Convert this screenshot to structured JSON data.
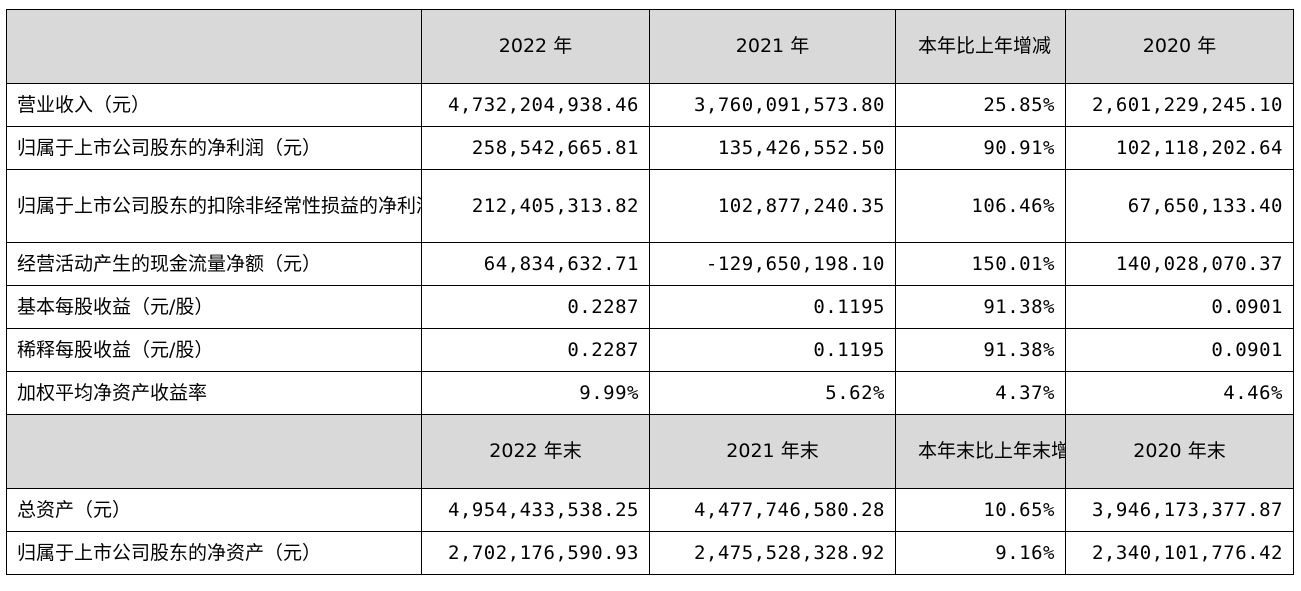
{
  "header1": {
    "col1": "2022 年",
    "col2": "2021 年",
    "col3": "本年比上年增减",
    "col4": "2020 年"
  },
  "rows1": [
    {
      "label": "营业收入（元）",
      "v1": "4,732,204,938.46",
      "v2": "3,760,091,573.80",
      "v3": "25.85%",
      "v4": "2,601,229,245.10"
    },
    {
      "label": "归属于上市公司股东的净利润（元）",
      "v1": "258,542,665.81",
      "v2": "135,426,552.50",
      "v3": "90.91%",
      "v4": "102,118,202.64"
    },
    {
      "label": "归属于上市公司股东的扣除非经常性损益的净利润（元）",
      "v1": "212,405,313.82",
      "v2": "102,877,240.35",
      "v3": "106.46%",
      "v4": "67,650,133.40"
    },
    {
      "label": "经营活动产生的现金流量净额（元）",
      "v1": "64,834,632.71",
      "v2": "-129,650,198.10",
      "v3": "150.01%",
      "v4": "140,028,070.37"
    },
    {
      "label": "基本每股收益（元/股）",
      "v1": "0.2287",
      "v2": "0.1195",
      "v3": "91.38%",
      "v4": "0.0901"
    },
    {
      "label": "稀释每股收益（元/股）",
      "v1": "0.2287",
      "v2": "0.1195",
      "v3": "91.38%",
      "v4": "0.0901"
    },
    {
      "label": "加权平均净资产收益率",
      "v1": "9.99%",
      "v2": "5.62%",
      "v3": "4.37%",
      "v4": "4.46%"
    }
  ],
  "header2": {
    "col1": "2022 年末",
    "col2": "2021 年末",
    "col3": "本年末比上年末增减",
    "col4": "2020 年末"
  },
  "rows2": [
    {
      "label": "总资产（元）",
      "v1": "4,954,433,538.25",
      "v2": "4,477,746,580.28",
      "v3": "10.65%",
      "v4": "3,946,173,377.87"
    },
    {
      "label": "归属于上市公司股东的净资产（元）",
      "v1": "2,702,176,590.93",
      "v2": "2,475,528,328.92",
      "v3": "9.16%",
      "v4": "2,340,101,776.42"
    }
  ]
}
